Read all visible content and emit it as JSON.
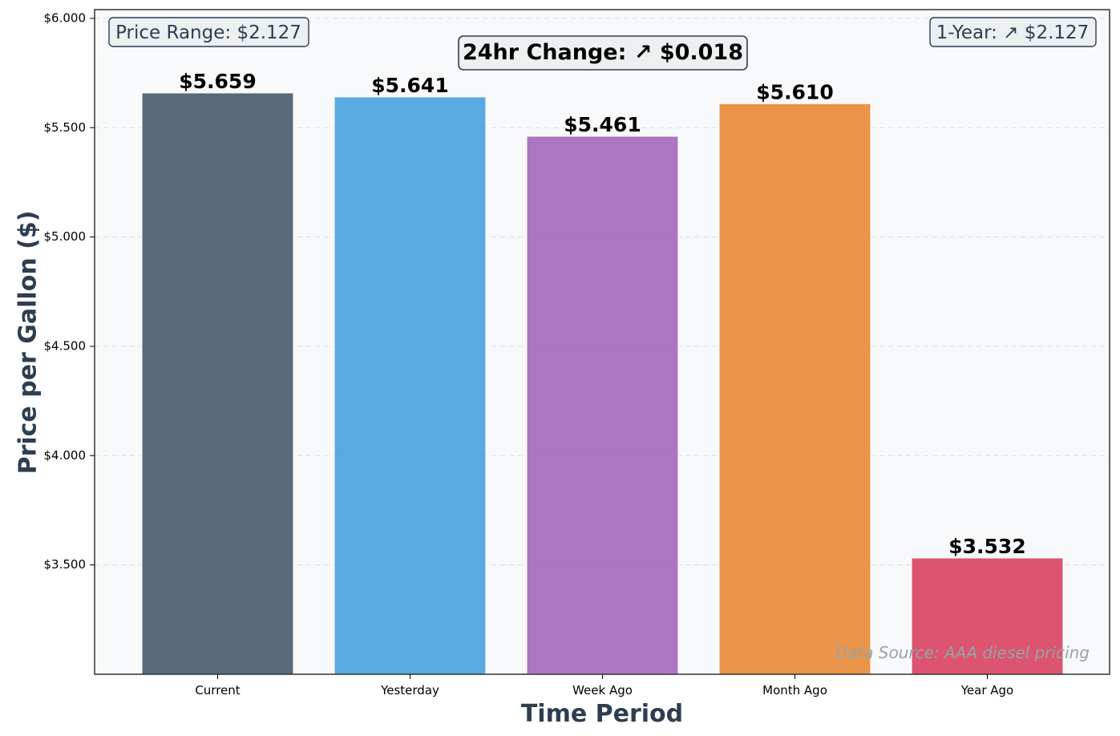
{
  "chart_data": {
    "type": "bar",
    "categories": [
      "Current",
      "Yesterday",
      "Week Ago",
      "Month Ago",
      "Year Ago"
    ],
    "values": [
      5.659,
      5.641,
      5.461,
      5.61,
      3.532
    ],
    "value_labels": [
      "$5.659",
      "$5.641",
      "$5.461",
      "$5.610",
      "$3.532"
    ],
    "colors": [
      "#34495e",
      "#3498db",
      "#9b59b6",
      "#e67e22",
      "#d63050"
    ],
    "xlabel": "Time Period",
    "ylabel": "Price per Gallon ($)",
    "ylim": [
      3.0,
      6.04
    ],
    "yticks": [
      3.5,
      4.0,
      4.5,
      5.0,
      5.5,
      6.0
    ],
    "ytick_labels": [
      "$3.500",
      "$4.000",
      "$4.500",
      "$5.000",
      "$5.500",
      "$6.000"
    ],
    "grid": true,
    "annotations": {
      "price_range": "Price Range: $2.127",
      "one_year": "1-Year: ↗ $2.127",
      "change_24hr": "24hr Change: ↗ $0.018",
      "source": "Data Source: AAA diesel pricing"
    }
  }
}
